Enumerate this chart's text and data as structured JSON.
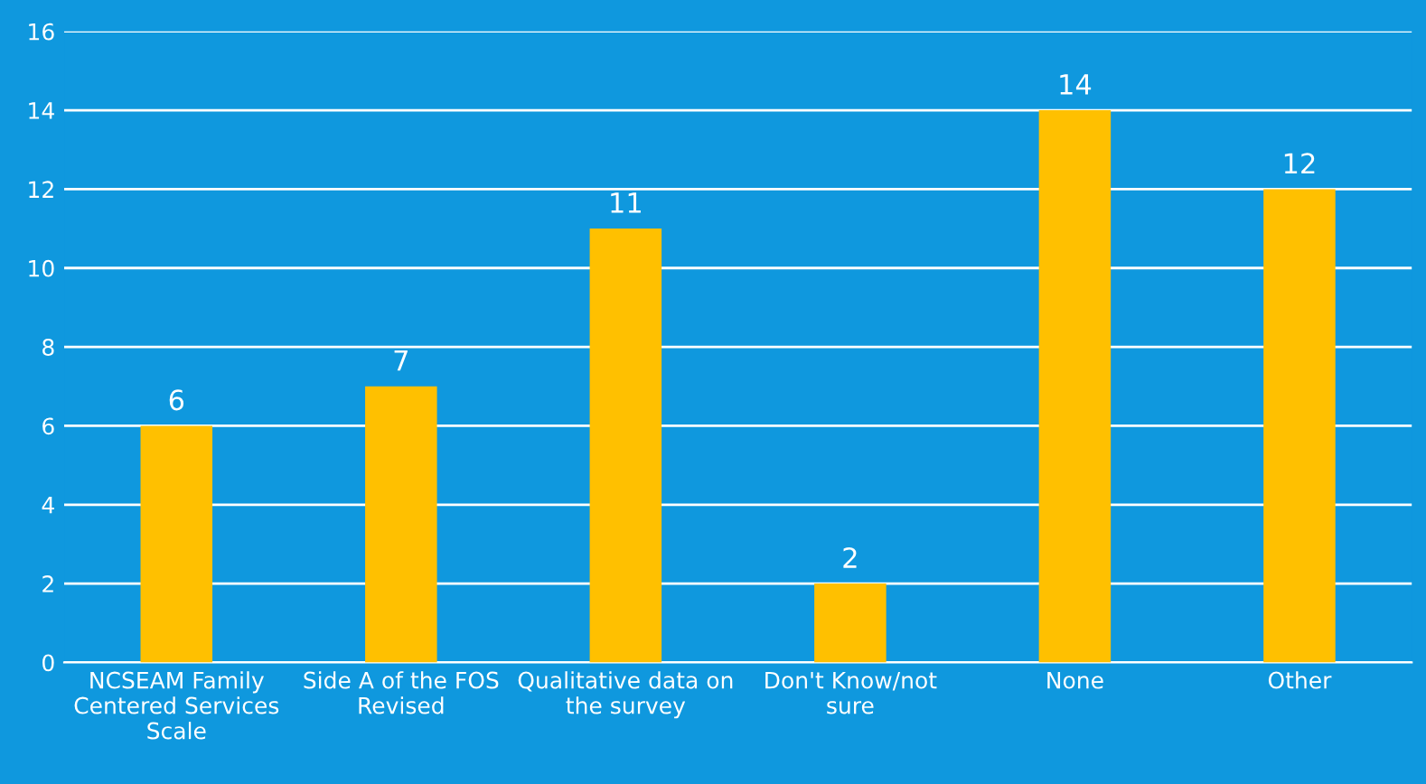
{
  "chart_data": {
    "type": "bar",
    "categories": [
      "NCSEAM Family\nCentered Services\nScale",
      "Side A of the FOS\nRevised",
      "Qualitative data on\nthe survey",
      "Don't Know/not\nsure",
      "None",
      "Other"
    ],
    "values": [
      6,
      7,
      11,
      2,
      14,
      12
    ],
    "color": "#ffc000",
    "ylim": [
      0,
      16
    ],
    "yticks": [
      0,
      2,
      4,
      6,
      8,
      10,
      12,
      14,
      16
    ],
    "grid": "y",
    "data_labels": true
  }
}
